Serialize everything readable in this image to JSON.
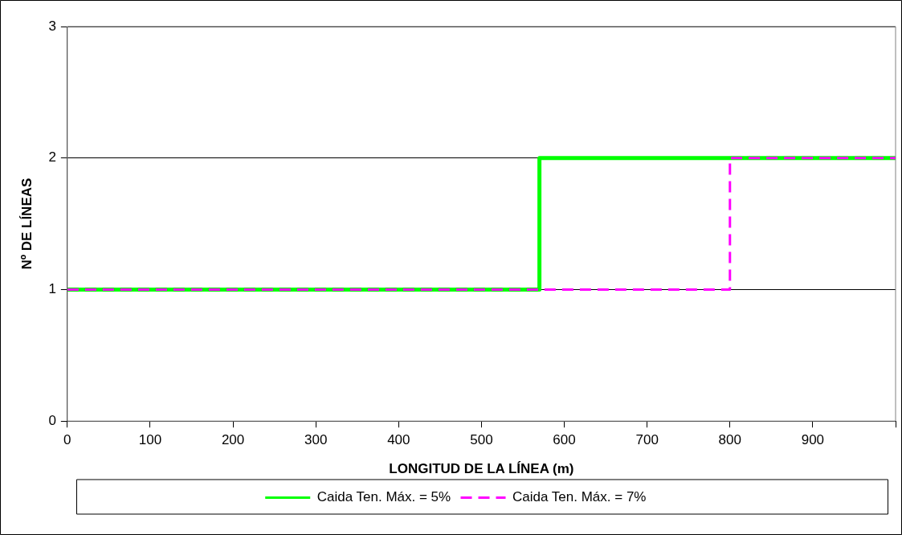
{
  "chart_data": {
    "type": "line",
    "xlabel": "LONGITUD DE LA LÍNEA (m)",
    "ylabel": "Nº DE LÍNEAS",
    "xlim": [
      0,
      1000
    ],
    "xticks": [
      0,
      100,
      200,
      300,
      400,
      500,
      600,
      700,
      800,
      900,
      {
        "value": 1000,
        "label": null
      }
    ],
    "ylim": [
      0,
      3
    ],
    "yticks": [
      0,
      1,
      2,
      3
    ],
    "grid": "y",
    "legend": "bottom",
    "marker": "none",
    "series": [
      {
        "name": "Caida Ten. Máx. = 5%",
        "color": "#00ff00",
        "line_style": "solid",
        "x": [
          0,
          570,
          570,
          1000
        ],
        "values": [
          1,
          1,
          2,
          2
        ]
      },
      {
        "name": "Caida Ten. Máx. = 7%",
        "color": "#ff00ff",
        "line_style": "dashed",
        "x": [
          0,
          800,
          800,
          1000
        ],
        "values": [
          1,
          1,
          2,
          2
        ]
      }
    ]
  }
}
